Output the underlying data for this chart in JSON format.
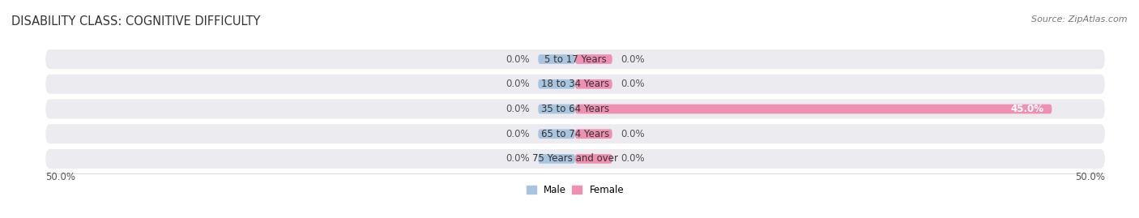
{
  "title": "DISABILITY CLASS: COGNITIVE DIFFICULTY",
  "source": "Source: ZipAtlas.com",
  "categories": [
    "5 to 17 Years",
    "18 to 34 Years",
    "35 to 64 Years",
    "65 to 74 Years",
    "75 Years and over"
  ],
  "male_values": [
    0.0,
    0.0,
    0.0,
    0.0,
    0.0
  ],
  "female_values": [
    0.0,
    0.0,
    45.0,
    0.0,
    0.0
  ],
  "male_color": "#a8c4de",
  "female_color": "#f090b0",
  "row_bg_color": "#ebebf0",
  "axis_limit": 50.0,
  "stub_size": 3.5,
  "male_label": "Male",
  "female_label": "Female",
  "left_label": "50.0%",
  "right_label": "50.0%",
  "title_fontsize": 10.5,
  "label_fontsize": 8.5,
  "tick_fontsize": 8.5,
  "source_fontsize": 8,
  "value_label_color": "#555555",
  "title_color": "#333333",
  "cat_label_color": "#333333"
}
